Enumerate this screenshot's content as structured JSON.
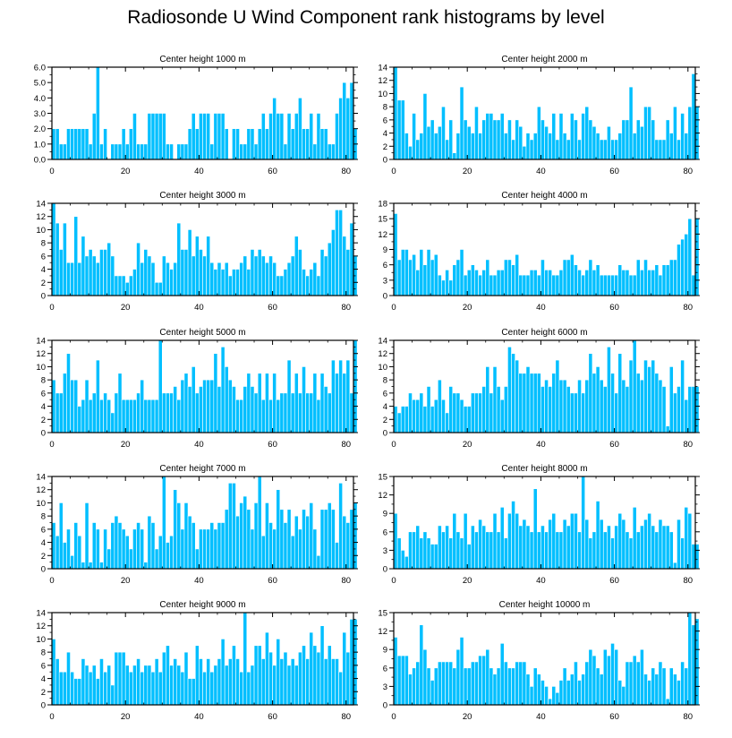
{
  "title": "Radiosonde U Wind Component rank histograms by level",
  "style": {
    "bar_color": "#00BFFF",
    "bar_edge": "#ffffff",
    "axis_color": "#000000"
  },
  "chart_data": [
    {
      "type": "bar",
      "title": "Center height 1000 m",
      "xlim": [
        0,
        82
      ],
      "xticks": [
        0,
        20,
        40,
        60,
        80
      ],
      "xticklabels": [
        "0",
        "20",
        "40",
        "60",
        "80"
      ],
      "ylim": [
        0,
        6
      ],
      "yticks": [
        0,
        1,
        2,
        3,
        4,
        5,
        6
      ],
      "yticklabels": [
        "0.0",
        "1.0",
        "2.0",
        "3.0",
        "4.0",
        "5.0",
        "6.0"
      ],
      "values": [
        2,
        2,
        1,
        1,
        2,
        2,
        2,
        2,
        2,
        2,
        1,
        3,
        6,
        1,
        2,
        0,
        1,
        1,
        1,
        2,
        1,
        2,
        3,
        1,
        1,
        1,
        3,
        3,
        3,
        3,
        3,
        1,
        1,
        0,
        1,
        1,
        1,
        2,
        3,
        2,
        3,
        3,
        3,
        1,
        3,
        3,
        3,
        2,
        0,
        2,
        2,
        1,
        1,
        2,
        2,
        1,
        2,
        3,
        2,
        3,
        4,
        3,
        3,
        1,
        3,
        2,
        3,
        4,
        2,
        2,
        3,
        1,
        3,
        2,
        2,
        1,
        1,
        3,
        4,
        5,
        4,
        5,
        2
      ]
    },
    {
      "type": "bar",
      "title": "Center height 2000 m",
      "xlim": [
        0,
        82
      ],
      "xticks": [
        0,
        20,
        40,
        60,
        80
      ],
      "xticklabels": [
        "0",
        "20",
        "40",
        "60",
        "80"
      ],
      "ylim": [
        0,
        14
      ],
      "yticks": [
        0,
        2,
        4,
        6,
        8,
        10,
        12,
        14
      ],
      "yticklabels": [
        "0",
        "2",
        "4",
        "6",
        "8",
        "10",
        "12",
        "14"
      ],
      "values": [
        14,
        9,
        9,
        4,
        2,
        7,
        3,
        4,
        10,
        5,
        6,
        4,
        5,
        8,
        3,
        6,
        1,
        4,
        11,
        6,
        5,
        4,
        8,
        4,
        6,
        7,
        7,
        6,
        6,
        7,
        4,
        6,
        3,
        6,
        5,
        2,
        4,
        3,
        4,
        8,
        6,
        5,
        4,
        7,
        3,
        7,
        4,
        3,
        7,
        6,
        3,
        7,
        8,
        6,
        5,
        4,
        3,
        3,
        5,
        3,
        3,
        4,
        6,
        6,
        11,
        4,
        6,
        5,
        8,
        8,
        6,
        3,
        3,
        3,
        6,
        4,
        8,
        3,
        7,
        4,
        8,
        13,
        8
      ]
    },
    {
      "type": "bar",
      "title": "Center height 3000 m",
      "xlim": [
        0,
        82
      ],
      "xticks": [
        0,
        20,
        40,
        60,
        80
      ],
      "xticklabels": [
        "0",
        "20",
        "40",
        "60",
        "80"
      ],
      "ylim": [
        0,
        14
      ],
      "yticks": [
        0,
        2,
        4,
        6,
        8,
        10,
        12,
        14
      ],
      "yticklabels": [
        "0",
        "2",
        "4",
        "6",
        "8",
        "10",
        "12",
        "14"
      ],
      "values": [
        14,
        11,
        7,
        11,
        5,
        5,
        12,
        5,
        9,
        6,
        7,
        6,
        5,
        7,
        7,
        8,
        6,
        3,
        3,
        3,
        2,
        3,
        4,
        8,
        5,
        7,
        6,
        5,
        2,
        2,
        6,
        5,
        4,
        5,
        11,
        7,
        7,
        10,
        6,
        9,
        7,
        6,
        9,
        5,
        4,
        5,
        4,
        5,
        3,
        4,
        4,
        5,
        6,
        4,
        7,
        6,
        7,
        6,
        5,
        6,
        5,
        3,
        3,
        4,
        5,
        6,
        9,
        7,
        4,
        3,
        4,
        5,
        3,
        7,
        6,
        8,
        10,
        13,
        13,
        9,
        7,
        11,
        6
      ]
    },
    {
      "type": "bar",
      "title": "Center height 4000 m",
      "xlim": [
        0,
        82
      ],
      "xticks": [
        0,
        20,
        40,
        60,
        80
      ],
      "xticklabels": [
        "0",
        "20",
        "40",
        "60",
        "80"
      ],
      "ylim": [
        0,
        18
      ],
      "yticks": [
        0,
        3,
        6,
        9,
        12,
        15,
        18
      ],
      "yticklabels": [
        "0",
        "3",
        "6",
        "9",
        "12",
        "15",
        "18"
      ],
      "values": [
        16,
        7,
        9,
        9,
        7,
        8,
        5,
        9,
        6,
        9,
        7,
        8,
        4,
        3,
        5,
        3,
        6,
        7,
        9,
        4,
        5,
        6,
        5,
        4,
        5,
        7,
        4,
        4,
        5,
        5,
        7,
        7,
        6,
        8,
        4,
        4,
        4,
        5,
        5,
        4,
        7,
        5,
        5,
        4,
        4,
        5,
        7,
        7,
        8,
        6,
        5,
        4,
        5,
        7,
        5,
        6,
        4,
        4,
        4,
        4,
        4,
        6,
        5,
        5,
        4,
        4,
        7,
        5,
        7,
        5,
        5,
        6,
        4,
        6,
        6,
        7,
        7,
        10,
        11,
        12,
        15,
        4,
        15
      ]
    },
    {
      "type": "bar",
      "title": "Center height 5000 m",
      "xlim": [
        0,
        82
      ],
      "xticks": [
        0,
        20,
        40,
        60,
        80
      ],
      "xticklabels": [
        "0",
        "20",
        "40",
        "60",
        "80"
      ],
      "ylim": [
        0,
        14
      ],
      "yticks": [
        0,
        2,
        4,
        6,
        8,
        10,
        12,
        14
      ],
      "yticklabels": [
        "0",
        "2",
        "4",
        "6",
        "8",
        "10",
        "12",
        "14"
      ],
      "values": [
        8,
        6,
        6,
        9,
        12,
        8,
        8,
        4,
        5,
        8,
        5,
        6,
        11,
        5,
        6,
        5,
        3,
        6,
        9,
        5,
        5,
        5,
        5,
        6,
        8,
        5,
        5,
        5,
        5,
        14,
        6,
        6,
        6,
        7,
        5,
        8,
        9,
        7,
        10,
        6,
        7,
        8,
        8,
        8,
        12,
        7,
        13,
        10,
        8,
        7,
        5,
        5,
        7,
        9,
        7,
        6,
        9,
        5,
        9,
        5,
        9,
        5,
        6,
        6,
        11,
        6,
        9,
        6,
        10,
        6,
        6,
        9,
        5,
        9,
        7,
        6,
        11,
        9,
        11,
        9,
        11,
        6,
        14
      ]
    },
    {
      "type": "bar",
      "title": "Center height 6000 m",
      "xlim": [
        0,
        82
      ],
      "xticks": [
        0,
        20,
        40,
        60,
        80
      ],
      "xticklabels": [
        "0",
        "20",
        "40",
        "60",
        "80"
      ],
      "ylim": [
        0,
        14
      ],
      "yticks": [
        0,
        2,
        4,
        6,
        8,
        10,
        12,
        14
      ],
      "yticklabels": [
        "0",
        "2",
        "4",
        "6",
        "8",
        "10",
        "12",
        "14"
      ],
      "values": [
        4,
        3,
        4,
        4,
        6,
        5,
        5,
        6,
        4,
        7,
        4,
        5,
        8,
        5,
        3,
        7,
        6,
        6,
        5,
        4,
        4,
        6,
        6,
        6,
        7,
        10,
        6,
        10,
        7,
        5,
        7,
        13,
        12,
        11,
        9,
        9,
        10,
        9,
        9,
        9,
        7,
        8,
        7,
        9,
        11,
        8,
        8,
        7,
        6,
        6,
        8,
        6,
        8,
        12,
        9,
        10,
        8,
        7,
        13,
        9,
        6,
        12,
        8,
        7,
        11,
        14,
        9,
        8,
        11,
        10,
        11,
        9,
        8,
        7,
        1,
        10,
        6,
        7,
        11,
        5,
        7,
        7,
        7
      ]
    },
    {
      "type": "bar",
      "title": "Center height 7000 m",
      "xlim": [
        0,
        82
      ],
      "xticks": [
        0,
        20,
        40,
        60,
        80
      ],
      "xticklabels": [
        "0",
        "20",
        "40",
        "60",
        "80"
      ],
      "ylim": [
        0,
        14
      ],
      "yticks": [
        0,
        2,
        4,
        6,
        8,
        10,
        12,
        14
      ],
      "yticklabels": [
        "0",
        "2",
        "4",
        "6",
        "8",
        "10",
        "12",
        "14"
      ],
      "values": [
        7,
        5,
        10,
        4,
        6,
        2,
        7,
        5,
        1,
        10,
        1,
        7,
        6,
        1,
        6,
        3,
        7,
        8,
        7,
        6,
        5,
        3,
        6,
        7,
        6,
        1,
        8,
        7,
        3,
        5,
        14,
        4,
        5,
        12,
        10,
        6,
        10,
        8,
        7,
        3,
        6,
        6,
        6,
        7,
        6,
        7,
        7,
        9,
        13,
        13,
        8,
        10,
        11,
        9,
        6,
        10,
        14,
        5,
        10,
        7,
        6,
        12,
        9,
        7,
        9,
        5,
        8,
        6,
        9,
        8,
        10,
        6,
        2,
        9,
        9,
        10,
        9,
        4,
        13,
        8,
        7,
        9,
        10
      ]
    },
    {
      "type": "bar",
      "title": "Center height 8000 m",
      "xlim": [
        0,
        82
      ],
      "xticks": [
        0,
        20,
        40,
        60,
        80
      ],
      "xticklabels": [
        "0",
        "20",
        "40",
        "60",
        "80"
      ],
      "ylim": [
        0,
        15
      ],
      "yticks": [
        0,
        3,
        6,
        9,
        12,
        15
      ],
      "yticklabels": [
        "0",
        "3",
        "6",
        "9",
        "12",
        "15"
      ],
      "values": [
        9,
        5,
        3,
        2,
        6,
        6,
        7,
        5,
        6,
        5,
        4,
        4,
        7,
        6,
        7,
        5,
        9,
        6,
        5,
        9,
        4,
        7,
        6,
        8,
        7,
        6,
        6,
        9,
        6,
        10,
        5,
        9,
        11,
        9,
        7,
        8,
        7,
        6,
        13,
        6,
        7,
        6,
        8,
        9,
        6,
        6,
        8,
        7,
        9,
        9,
        6,
        15,
        8,
        5,
        6,
        11,
        8,
        6,
        7,
        5,
        7,
        9,
        8,
        6,
        5,
        10,
        6,
        7,
        8,
        9,
        7,
        6,
        8,
        7,
        7,
        6,
        1,
        8,
        5,
        10,
        9,
        4,
        4
      ]
    },
    {
      "type": "bar",
      "title": "Center height 9000 m",
      "xlim": [
        0,
        82
      ],
      "xticks": [
        0,
        20,
        40,
        60,
        80
      ],
      "xticklabels": [
        "0",
        "20",
        "40",
        "60",
        "80"
      ],
      "ylim": [
        0,
        14
      ],
      "yticks": [
        0,
        2,
        4,
        6,
        8,
        10,
        12,
        14
      ],
      "yticklabels": [
        "0",
        "2",
        "4",
        "6",
        "8",
        "10",
        "12",
        "14"
      ],
      "values": [
        10,
        7,
        5,
        5,
        8,
        5,
        4,
        4,
        7,
        6,
        5,
        6,
        4,
        7,
        5,
        6,
        3,
        8,
        8,
        8,
        6,
        5,
        6,
        7,
        5,
        6,
        6,
        5,
        7,
        5,
        8,
        9,
        6,
        7,
        6,
        5,
        8,
        4,
        4,
        9,
        7,
        5,
        7,
        5,
        6,
        7,
        10,
        6,
        7,
        9,
        7,
        5,
        14,
        5,
        6,
        9,
        9,
        7,
        11,
        8,
        6,
        10,
        7,
        8,
        6,
        7,
        6,
        8,
        9,
        7,
        11,
        9,
        8,
        12,
        7,
        9,
        7,
        7,
        5,
        11,
        8,
        13,
        13
      ]
    },
    {
      "type": "bar",
      "title": "Center height 10000 m",
      "xlim": [
        0,
        82
      ],
      "xticks": [
        0,
        20,
        40,
        60,
        80
      ],
      "xticklabels": [
        "0",
        "20",
        "40",
        "60",
        "80"
      ],
      "ylim": [
        0,
        15
      ],
      "yticks": [
        0,
        3,
        6,
        9,
        12,
        15
      ],
      "yticklabels": [
        "0",
        "3",
        "6",
        "9",
        "12",
        "15"
      ],
      "values": [
        11,
        8,
        8,
        8,
        5,
        6,
        7,
        13,
        9,
        6,
        4,
        6,
        7,
        7,
        7,
        7,
        6,
        9,
        11,
        6,
        6,
        7,
        7,
        8,
        8,
        9,
        6,
        5,
        6,
        10,
        7,
        6,
        6,
        7,
        7,
        7,
        5,
        3,
        6,
        5,
        4,
        3,
        1,
        3,
        2,
        4,
        6,
        4,
        5,
        7,
        4,
        5,
        7,
        9,
        8,
        6,
        5,
        9,
        8,
        10,
        9,
        4,
        3,
        7,
        7,
        8,
        7,
        9,
        5,
        4,
        6,
        5,
        7,
        6,
        1,
        6,
        5,
        4,
        7,
        6,
        15,
        13,
        14
      ]
    }
  ]
}
